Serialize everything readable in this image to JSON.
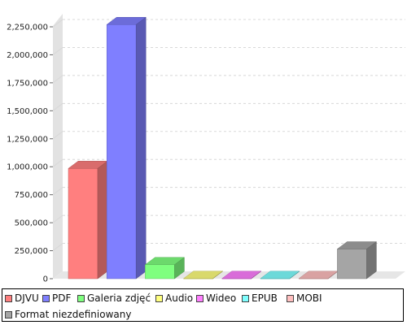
{
  "chart_data": {
    "type": "bar",
    "categories": [
      "DJVU",
      "PDF",
      "Galeria zdjęć",
      "Audio",
      "Wideo",
      "EPUB",
      "MOBI",
      "Format niezdefiniowany"
    ],
    "values": [
      985000,
      2270000,
      125000,
      2000,
      2000,
      2000,
      2000,
      265000
    ],
    "colors": [
      "#ff7f7f",
      "#7f7fff",
      "#7fff7f",
      "#ffff7f",
      "#ff7fff",
      "#7fffff",
      "#ffbfbf",
      "#a5a5a5"
    ],
    "ylim": [
      0,
      2500000
    ],
    "yticks": [
      0,
      250000,
      500000,
      750000,
      1000000,
      1250000,
      1500000,
      1750000,
      2000000,
      2250000
    ],
    "ytick_labels": [
      "0",
      "250,000",
      "500,000",
      "750,000",
      "1,000,000",
      "1,250,000",
      "1,500,000",
      "1,750,000",
      "2,000,000",
      "2,250,000"
    ],
    "title": "",
    "xlabel": "",
    "ylabel": "",
    "grid": true,
    "legend_placement": "bottom"
  }
}
